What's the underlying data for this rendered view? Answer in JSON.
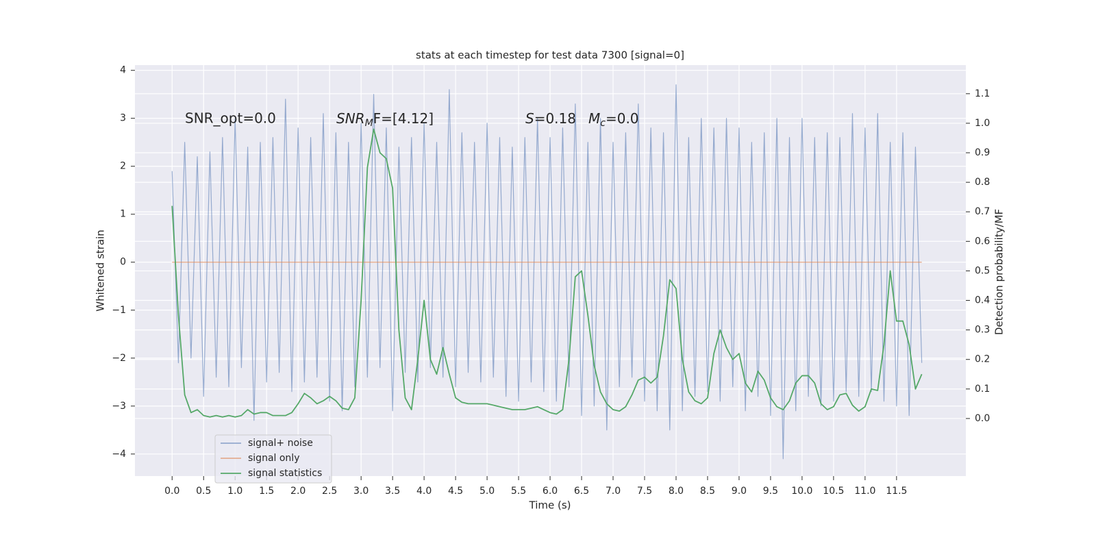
{
  "chart_data": {
    "type": "line",
    "title": "stats at each timestep for test data 7300 [signal=0]",
    "xlabel": "Time (s)",
    "ylabel": "Whitened strain",
    "y2label": "Detection probability/MF",
    "annotations": [
      "SNR_opt=0.0",
      [
        "SNR",
        "M",
        "F=[4.12]"
      ],
      [
        "S",
        "=0.18",
        "M",
        "c",
        "=0.0"
      ]
    ],
    "xlim": [
      -0.59,
      12.6
    ],
    "xticks": [
      {
        "value": 0,
        "label": "0.0"
      },
      0.5,
      {
        "value": 1,
        "label": "1.0"
      },
      1.5,
      {
        "value": 2,
        "label": "2.0"
      },
      2.5,
      {
        "value": 3,
        "label": "3.0"
      },
      3.5,
      {
        "value": 4,
        "label": "4.0"
      },
      4.5,
      {
        "value": 5,
        "label": "5.0"
      },
      5.5,
      {
        "value": 6,
        "label": "6.0"
      },
      6.5,
      {
        "value": 7,
        "label": "7.0"
      },
      7.5,
      {
        "value": 8,
        "label": "8.0"
      },
      8.5,
      {
        "value": 9,
        "label": "9.0"
      },
      9.5,
      {
        "value": 10,
        "label": "10.0"
      },
      10.5,
      {
        "value": 11,
        "label": "11.0"
      },
      11.5
    ],
    "ylim": [
      -4.46,
      4.11
    ],
    "yticks": [
      {
        "value": -4,
        "label": "−4"
      },
      {
        "value": -3,
        "label": "−3"
      },
      {
        "value": -2,
        "label": "−2"
      },
      {
        "value": -1,
        "label": "−1"
      },
      0,
      1,
      2,
      3,
      4
    ],
    "y2lim": [
      -0.195,
      1.197
    ],
    "y2ticks": [
      {
        "value": 0,
        "label": "0.0"
      },
      0.1,
      0.2,
      0.3,
      0.4,
      0.5,
      0.6,
      0.7,
      0.8,
      0.9,
      {
        "value": 1,
        "label": "1.0"
      },
      1.1
    ],
    "grid": true,
    "legend": "lower left",
    "x": [
      0,
      0.1,
      0.2,
      0.3,
      0.4,
      0.5,
      0.6,
      0.7,
      0.8,
      0.9,
      1,
      1.1,
      1.2,
      1.3,
      1.4,
      1.5,
      1.6,
      1.7,
      1.8,
      1.9,
      2,
      2.1,
      2.2,
      2.3,
      2.4,
      2.5,
      2.6,
      2.7,
      2.8,
      2.9,
      3,
      3.1,
      3.2,
      3.3,
      3.4,
      3.5,
      3.6,
      3.7,
      3.8,
      3.9,
      4,
      4.1,
      4.2,
      4.3,
      4.4,
      4.5,
      4.6,
      4.7,
      4.8,
      4.9,
      5,
      5.1,
      5.2,
      5.3,
      5.4,
      5.5,
      5.6,
      5.7,
      5.8,
      5.9,
      6,
      6.1,
      6.2,
      6.3,
      6.4,
      6.5,
      6.6,
      6.7,
      6.8,
      6.9,
      7,
      7.1,
      7.2,
      7.3,
      7.4,
      7.5,
      7.6,
      7.7,
      7.8,
      7.9,
      8,
      8.1,
      8.2,
      8.3,
      8.4,
      8.5,
      8.6,
      8.7,
      8.8,
      8.9,
      9,
      9.1,
      9.2,
      9.3,
      9.4,
      9.5,
      9.6,
      9.7,
      9.8,
      9.9,
      10,
      10.1,
      10.2,
      10.3,
      10.4,
      10.5,
      10.6,
      10.7,
      10.8,
      10.9,
      11,
      11.1,
      11.2,
      11.3,
      11.4,
      11.5,
      11.6,
      11.7,
      11.8,
      11.9
    ],
    "series": [
      {
        "name": "signal+ noise",
        "color": "#4c72b0",
        "values": [
          1.9,
          -2.1,
          2.5,
          -2.0,
          2.2,
          -2.8,
          2.3,
          -2.4,
          2.6,
          -2.6,
          3.0,
          -2.2,
          2.4,
          -3.3,
          2.5,
          -2.5,
          2.6,
          -2.3,
          3.4,
          -2.7,
          2.8,
          -2.5,
          2.6,
          -2.4,
          3.1,
          -2.9,
          2.7,
          -3.1,
          2.5,
          -2.6,
          2.9,
          -2.4,
          3.5,
          -2.2,
          2.8,
          -3.1,
          2.4,
          -2.3,
          2.6,
          -2.5,
          2.9,
          -2.2,
          2.5,
          -2.4,
          3.6,
          -2.6,
          2.7,
          -2.3,
          2.5,
          -2.5,
          2.9,
          -2.4,
          2.6,
          -2.8,
          2.4,
          -2.9,
          2.6,
          -2.5,
          3.0,
          -2.7,
          2.6,
          -2.9,
          2.8,
          -2.6,
          3.3,
          -3.2,
          2.5,
          -3.0,
          3.0,
          -3.5,
          2.5,
          -2.6,
          2.7,
          -2.4,
          3.3,
          -2.9,
          2.8,
          -3.1,
          2.7,
          -3.5,
          3.7,
          -3.1,
          2.6,
          -2.8,
          3.0,
          -2.7,
          2.8,
          -2.9,
          3.0,
          -2.6,
          2.8,
          -3.1,
          2.5,
          -2.8,
          2.7,
          -3.2,
          3.0,
          -4.1,
          2.6,
          -3.1,
          3.0,
          -2.8,
          2.6,
          -3.0,
          2.7,
          -2.9,
          2.6,
          -2.7,
          3.1,
          -2.8,
          2.8,
          -2.7,
          3.1,
          -2.9,
          2.5,
          -3.0,
          2.7,
          -3.2,
          2.4,
          -2.1
        ]
      },
      {
        "name": "signal only",
        "color": "#dd8452",
        "values": [
          0,
          0,
          0,
          0,
          0,
          0,
          0,
          0,
          0,
          0,
          0,
          0,
          0,
          0,
          0,
          0,
          0,
          0,
          0,
          0,
          0,
          0,
          0,
          0,
          0,
          0,
          0,
          0,
          0,
          0,
          0,
          0,
          0,
          0,
          0,
          0,
          0,
          0,
          0,
          0,
          0,
          0,
          0,
          0,
          0,
          0,
          0,
          0,
          0,
          0,
          0,
          0,
          0,
          0,
          0,
          0,
          0,
          0,
          0,
          0,
          0,
          0,
          0,
          0,
          0,
          0,
          0,
          0,
          0,
          0,
          0,
          0,
          0,
          0,
          0,
          0,
          0,
          0,
          0,
          0,
          0,
          0,
          0,
          0,
          0,
          0,
          0,
          0,
          0,
          0,
          0,
          0,
          0,
          0,
          0,
          0,
          0,
          0,
          0,
          0,
          0,
          0,
          0,
          0,
          0,
          0,
          0,
          0,
          0,
          0,
          0,
          0,
          0,
          0,
          0,
          0,
          0,
          0,
          0,
          0
        ]
      },
      {
        "name": "signal statistics",
        "color": "#55a868",
        "axis": "y2",
        "values": [
          0.72,
          0.35,
          0.08,
          0.02,
          0.03,
          0.01,
          0.005,
          0.01,
          0.005,
          0.01,
          0.005,
          0.01,
          0.03,
          0.015,
          0.02,
          0.02,
          0.01,
          0.01,
          0.01,
          0.02,
          0.05,
          0.085,
          0.07,
          0.05,
          0.06,
          0.075,
          0.06,
          0.035,
          0.03,
          0.07,
          0.4,
          0.85,
          0.98,
          0.9,
          0.88,
          0.78,
          0.3,
          0.07,
          0.03,
          0.2,
          0.4,
          0.2,
          0.15,
          0.24,
          0.15,
          0.07,
          0.055,
          0.05,
          0.05,
          0.05,
          0.05,
          0.045,
          0.04,
          0.035,
          0.03,
          0.03,
          0.03,
          0.035,
          0.04,
          0.03,
          0.02,
          0.015,
          0.03,
          0.2,
          0.48,
          0.5,
          0.35,
          0.18,
          0.09,
          0.05,
          0.03,
          0.025,
          0.04,
          0.08,
          0.13,
          0.14,
          0.12,
          0.14,
          0.28,
          0.47,
          0.44,
          0.2,
          0.09,
          0.06,
          0.05,
          0.07,
          0.22,
          0.3,
          0.24,
          0.2,
          0.22,
          0.12,
          0.09,
          0.16,
          0.13,
          0.07,
          0.04,
          0.03,
          0.06,
          0.12,
          0.145,
          0.145,
          0.12,
          0.05,
          0.03,
          0.04,
          0.08,
          0.085,
          0.045,
          0.025,
          0.04,
          0.1,
          0.095,
          0.25,
          0.5,
          0.33,
          0.33,
          0.25,
          0.1,
          0.15
        ]
      }
    ]
  }
}
